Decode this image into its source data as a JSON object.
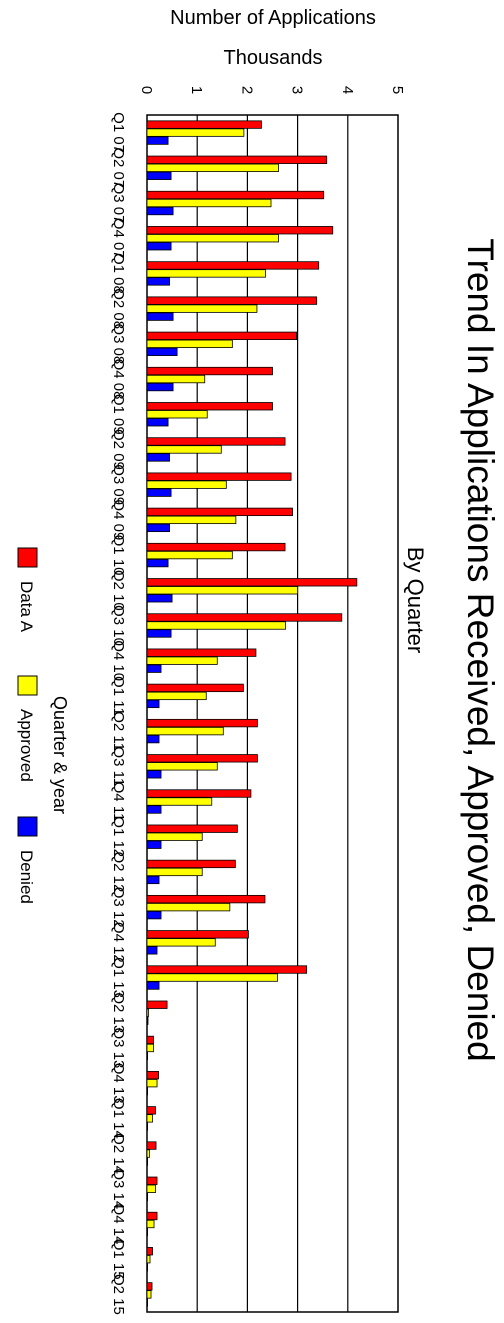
{
  "chart_data": {
    "type": "bar",
    "orientation": "rotated-90-clockwise",
    "title": "Trend In Applications Received, Approved, Denied",
    "subtitle": "By Quarter",
    "ylabel": "Number of Applications",
    "yunit": "Thousands",
    "xlabel": "Quarter & year",
    "ylim": [
      0,
      5
    ],
    "yticks": [
      "0",
      "1",
      "2",
      "3",
      "4",
      "5"
    ],
    "grid": true,
    "legend_position": "bottom",
    "categories": [
      "Q1 07",
      "Q2 07",
      "Q3 07",
      "Q4 07",
      "Q1 08",
      "Q2 08",
      "Q3 08",
      "Q4 08",
      "Q1 09",
      "Q2 09",
      "Q3 09",
      "Q4 09",
      "Q1 10",
      "Q2 10",
      "Q3 10",
      "Q4 10",
      "Q1 11",
      "Q2 11",
      "Q3 11",
      "Q4 11",
      "Q1 12",
      "Q2 12",
      "Q3 12",
      "Q4 12",
      "Q1 13",
      "Q2 13",
      "Q3 13",
      "Q4 13",
      "Q1 14",
      "Q2 14",
      "Q3 14",
      "Q4 14",
      "Q1 15",
      "Q2 15"
    ],
    "series": [
      {
        "name": "Data A",
        "color": "#ff0000",
        "values": [
          2.28,
          3.58,
          3.52,
          3.7,
          3.42,
          3.38,
          2.98,
          2.5,
          2.5,
          2.75,
          2.87,
          2.9,
          2.75,
          4.18,
          3.88,
          2.17,
          1.92,
          2.2,
          2.2,
          2.07,
          1.8,
          1.76,
          2.35,
          2.02,
          3.18,
          0.4,
          0.13,
          0.23,
          0.17,
          0.18,
          0.2,
          0.2,
          0.11,
          0.1
        ]
      },
      {
        "name": "Approved",
        "color": "#ffff00",
        "values": [
          1.93,
          2.62,
          2.47,
          2.62,
          2.36,
          2.19,
          1.7,
          1.15,
          1.2,
          1.48,
          1.58,
          1.77,
          1.7,
          3.0,
          2.76,
          1.4,
          1.18,
          1.52,
          1.4,
          1.29,
          1.1,
          1.1,
          1.65,
          1.36,
          2.6,
          0.03,
          0.13,
          0.2,
          0.11,
          0.05,
          0.17,
          0.14,
          0.06,
          0.08
        ]
      },
      {
        "name": "Denied",
        "color": "#0000ff",
        "values": [
          0.42,
          0.48,
          0.52,
          0.48,
          0.45,
          0.52,
          0.6,
          0.52,
          0.42,
          0.45,
          0.48,
          0.45,
          0.42,
          0.5,
          0.48,
          0.28,
          0.24,
          0.24,
          0.28,
          0.28,
          0.28,
          0.24,
          0.28,
          0.2,
          0.24,
          0.02,
          0.01,
          0.01,
          0.01,
          0.01,
          0.01,
          0.01,
          0.01,
          0.01
        ]
      }
    ]
  }
}
